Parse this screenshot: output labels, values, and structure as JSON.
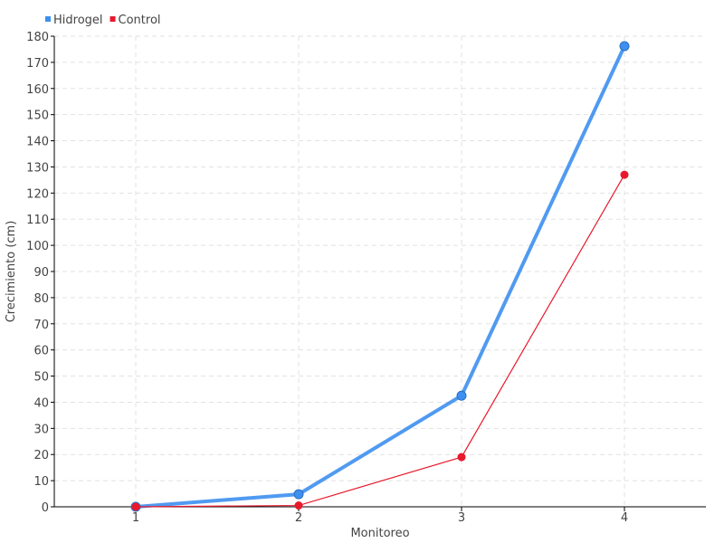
{
  "chart_data": {
    "type": "line",
    "title": "",
    "xlabel": "Monitoreo",
    "ylabel": "Crecimiento (cm)",
    "categories": [
      "1",
      "2",
      "3",
      "4"
    ],
    "ylim": [
      0,
      180
    ],
    "ytick_step": 10,
    "grid": true,
    "legend_position": "top-left",
    "series": [
      {
        "name": "Hidrogel",
        "color": "#3d8ff0",
        "values": [
          0,
          4.8,
          42.5,
          176.2
        ]
      },
      {
        "name": "Control",
        "color": "#e8192c",
        "values": [
          0,
          0.5,
          19,
          127
        ]
      }
    ]
  }
}
